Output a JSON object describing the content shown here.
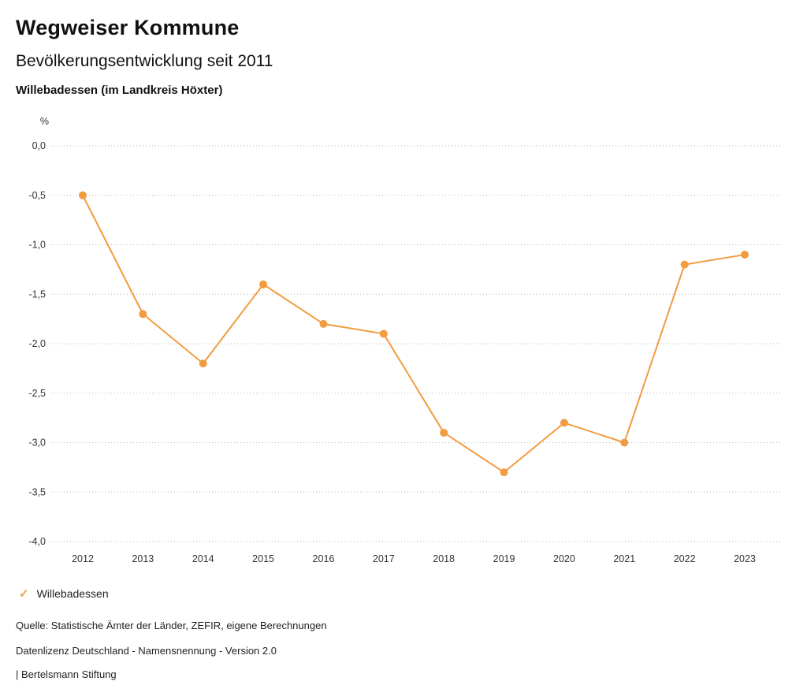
{
  "header": {
    "title": "Wegweiser Kommune",
    "subtitle": "Bevölkerungsentwicklung seit 2011",
    "region": "Willebadessen (im Landkreis Höxter)"
  },
  "chart_data": {
    "type": "line",
    "title": "Bevölkerungsentwicklung seit 2011",
    "unit_label": "%",
    "x": [
      2012,
      2013,
      2014,
      2015,
      2016,
      2017,
      2018,
      2019,
      2020,
      2021,
      2022,
      2023
    ],
    "series": [
      {
        "name": "Willebadessen",
        "values": [
          -0.5,
          -1.7,
          -2.2,
          -1.4,
          -1.8,
          -1.9,
          -2.9,
          -3.3,
          -2.8,
          -3.0,
          -1.2,
          -1.1
        ],
        "color": "#F29B40"
      }
    ],
    "ylim": [
      -4.0,
      0.0
    ],
    "ytick_values": [
      0.0,
      -0.5,
      -1.0,
      -1.5,
      -2.0,
      -2.5,
      -3.0,
      -3.5,
      -4.0
    ],
    "ytick_labels": [
      "0,0",
      "-0,5",
      "-1,0",
      "-1,5",
      "-2,0",
      "-2,5",
      "-3,0",
      "-3,5",
      "-4,0"
    ],
    "grid": "dotted-horizontal",
    "legend_position": "bottom-left"
  },
  "legend": {
    "items": [
      {
        "label": "Willebadessen",
        "color": "#F29B40",
        "check_glyph": "✓"
      }
    ]
  },
  "footer": {
    "source": "Quelle: Statistische Ämter der Länder, ZEFIR, eigene Berechnungen",
    "license": "Datenlizenz Deutschland - Namensnennung - Version 2.0",
    "publisher": "| Bertelsmann Stiftung"
  },
  "colors": {
    "accent": "#F29B40",
    "gridline": "#b5b5b5",
    "text": "#333333"
  }
}
